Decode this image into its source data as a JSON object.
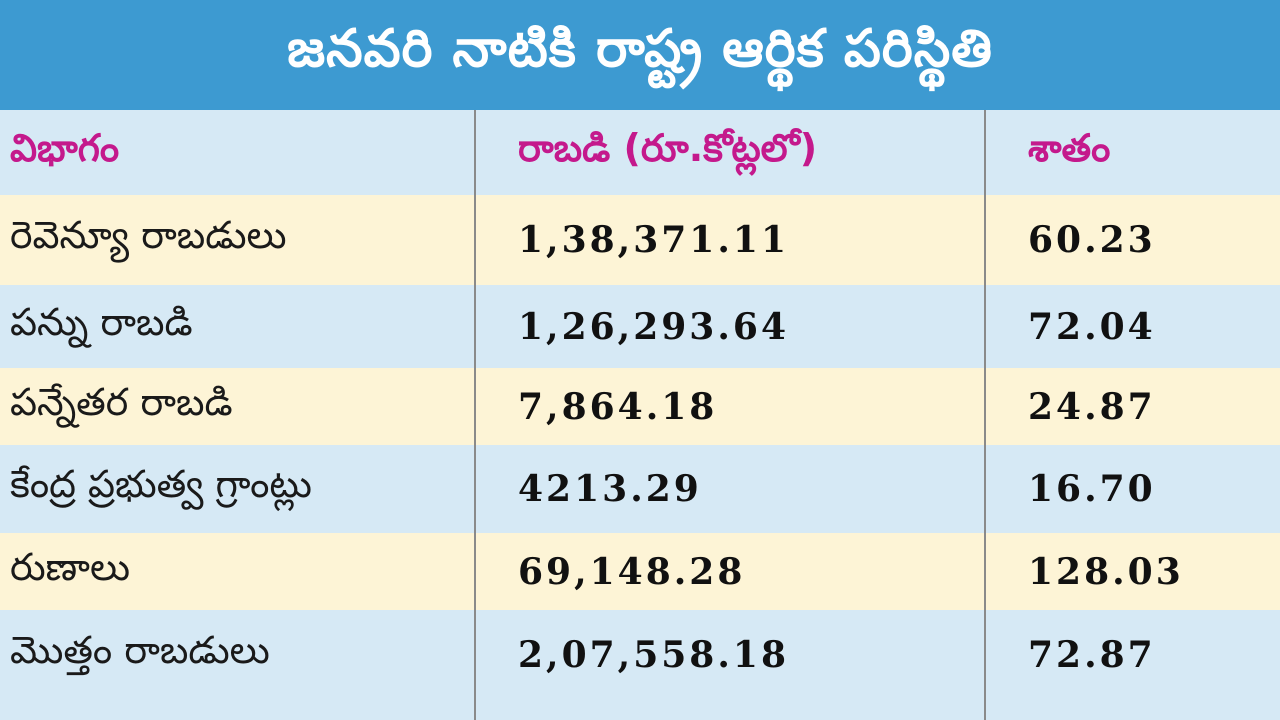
{
  "title": "జనవరి నాటికి రాష్ట్ర ఆర్థిక పరిస్థితి",
  "table": {
    "headers": [
      "విభాగం",
      "రాబడి (రూ.కోట్లలో)",
      "శాతం"
    ],
    "rows": [
      {
        "category": "రెవెన్యూ రాబడులు",
        "amount": "1,38,371.11",
        "percent": "60.23"
      },
      {
        "category": "పన్ను రాబడి",
        "amount": "1,26,293.64",
        "percent": "72.04"
      },
      {
        "category": "పన్నేతర రాబడి",
        "amount": "7,864.18",
        "percent": "24.87"
      },
      {
        "category": "కేంద్ర ప్రభుత్వ గ్రాంట్లు",
        "amount": "4213.29",
        "percent": "16.70"
      },
      {
        "category": "రుణాలు",
        "amount": "69,148.28",
        "percent": "128.03"
      },
      {
        "category": "మొత్తం రాబడులు",
        "amount": "2,07,558.18",
        "percent": "72.87"
      }
    ]
  },
  "colors": {
    "header_bg": "#3d9ad1",
    "header_text": "#ffffff",
    "column_header_text": "#c4198c",
    "row_cream": "#fdf4d6",
    "row_blue": "#d6e9f5"
  }
}
